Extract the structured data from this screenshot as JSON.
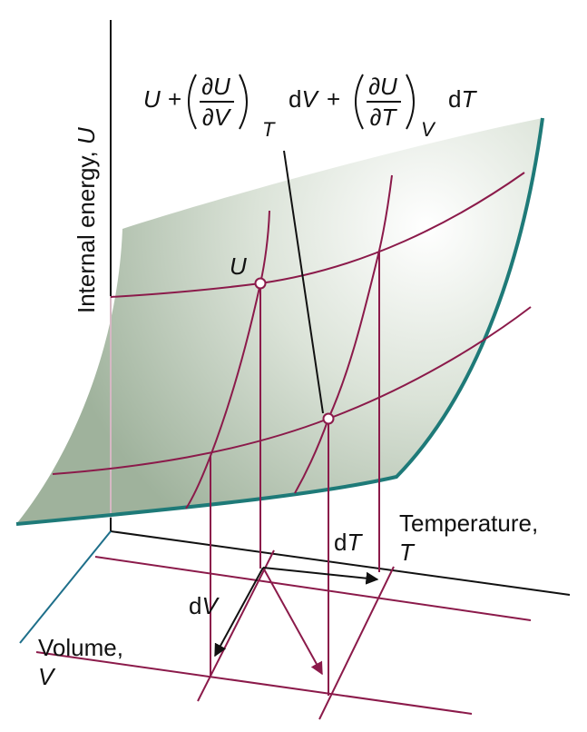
{
  "axes": {
    "energy": {
      "label": "Internal energy,",
      "symbol": "U"
    },
    "temperature": {
      "label": "Temperature,",
      "symbol": "T"
    },
    "volume": {
      "label": "Volume,",
      "symbol": "V"
    }
  },
  "point_label": "U",
  "increments": {
    "temperature": {
      "d": "d",
      "symbol": "T"
    },
    "volume": {
      "d": "d",
      "symbol": "V"
    }
  },
  "formula": {
    "base": "U",
    "operators": [
      "+",
      "+"
    ],
    "terms": [
      {
        "numerator": "∂U",
        "denominator": "∂V",
        "subscript": "T",
        "d": "d",
        "variable": "V"
      },
      {
        "numerator": "∂U",
        "denominator": "∂T",
        "subscript": "V",
        "d": "d",
        "variable": "T"
      }
    ]
  }
}
